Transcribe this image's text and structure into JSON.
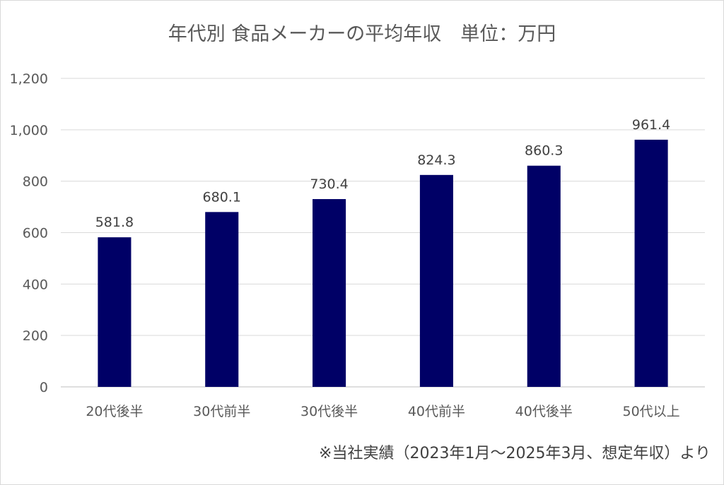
{
  "chart_data": {
    "type": "bar",
    "title": "年代別 食品メーカーの平均年収　単位：万円",
    "categories": [
      "20代後半",
      "30代前半",
      "30代後半",
      "40代前半",
      "40代後半",
      "50代以上"
    ],
    "values": [
      581.8,
      680.1,
      730.4,
      824.3,
      860.3,
      961.4
    ],
    "data_labels": [
      "581.8",
      "680.1",
      "730.4",
      "824.3",
      "860.3",
      "961.4"
    ],
    "ylim": [
      0,
      1200
    ],
    "yticks": [
      0,
      200,
      400,
      600,
      800,
      1000,
      1200
    ],
    "ytick_labels": [
      "0",
      "200",
      "400",
      "600",
      "800",
      "1,000",
      "1,200"
    ],
    "xlabel": "",
    "ylabel": "",
    "grid": true,
    "bar_color": "#000066",
    "footnote": "※当社実績（2023年1月～2025年3月、想定年収）より"
  }
}
